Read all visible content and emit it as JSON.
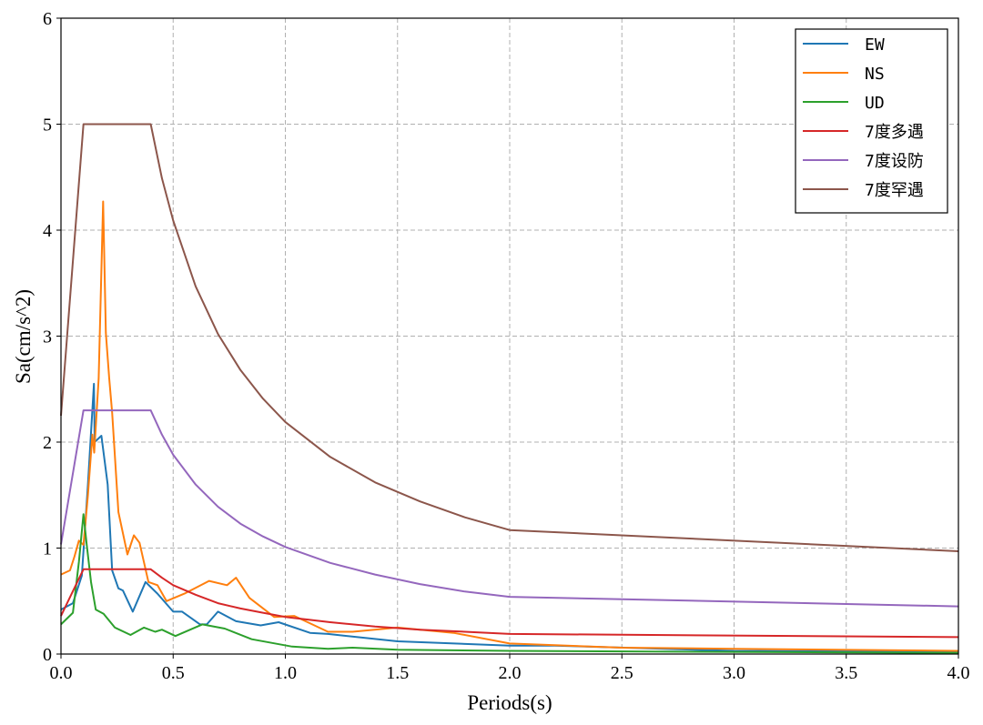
{
  "chart_data": {
    "type": "line",
    "xlabel": "Periods(s)",
    "ylabel": "Sa(cm/s^2)",
    "xlim": [
      0,
      4.0
    ],
    "ylim": [
      0,
      6
    ],
    "xticks": [
      "0.0",
      "0.5",
      "1.0",
      "1.5",
      "2.0",
      "2.5",
      "3.0",
      "3.5",
      "4.0"
    ],
    "yticks": [
      "0",
      "1",
      "2",
      "3",
      "4",
      "5",
      "6"
    ],
    "grid": true,
    "legend_position": "top-right",
    "series": [
      {
        "name": "EW",
        "color": "#1f77b4",
        "x": [
          0,
          0.053,
          0.093,
          0.12,
          0.147,
          0.15,
          0.18,
          0.208,
          0.228,
          0.256,
          0.276,
          0.32,
          0.377,
          0.43,
          0.5,
          0.54,
          0.62,
          0.65,
          0.7,
          0.78,
          0.89,
          0.97,
          1.11,
          1.19,
          1.5,
          2.0,
          2.2,
          3.0,
          4.0
        ],
        "y": [
          0.42,
          0.48,
          0.74,
          1.6,
          2.55,
          2.0,
          2.06,
          1.6,
          0.79,
          0.62,
          0.6,
          0.4,
          0.68,
          0.57,
          0.4,
          0.4,
          0.28,
          0.28,
          0.4,
          0.31,
          0.27,
          0.3,
          0.2,
          0.19,
          0.12,
          0.08,
          0.08,
          0.03,
          0.02
        ]
      },
      {
        "name": "NS",
        "color": "#ff7f0e",
        "x": [
          0,
          0.04,
          0.06,
          0.08,
          0.1,
          0.12,
          0.14,
          0.148,
          0.168,
          0.188,
          0.2,
          0.215,
          0.228,
          0.256,
          0.296,
          0.325,
          0.35,
          0.39,
          0.43,
          0.47,
          0.55,
          0.66,
          0.74,
          0.78,
          0.84,
          0.95,
          1.04,
          1.19,
          1.3,
          1.5,
          1.75,
          2.0,
          2.5,
          3.0,
          4.0
        ],
        "y": [
          0.75,
          0.79,
          0.92,
          1.07,
          1.03,
          1.5,
          2.07,
          1.9,
          2.6,
          4.27,
          3.03,
          2.6,
          2.28,
          1.34,
          0.94,
          1.12,
          1.05,
          0.68,
          0.65,
          0.5,
          0.57,
          0.69,
          0.65,
          0.72,
          0.53,
          0.35,
          0.36,
          0.21,
          0.21,
          0.25,
          0.2,
          0.1,
          0.06,
          0.05,
          0.03
        ]
      },
      {
        "name": "UD",
        "color": "#2ca02c",
        "x": [
          0,
          0.053,
          0.08,
          0.1,
          0.115,
          0.134,
          0.155,
          0.19,
          0.24,
          0.31,
          0.37,
          0.42,
          0.45,
          0.51,
          0.63,
          0.73,
          0.85,
          1.03,
          1.19,
          1.3,
          1.5,
          2.0,
          4.0
        ],
        "y": [
          0.28,
          0.39,
          0.87,
          1.32,
          1.03,
          0.68,
          0.42,
          0.38,
          0.25,
          0.18,
          0.25,
          0.21,
          0.23,
          0.17,
          0.28,
          0.24,
          0.14,
          0.07,
          0.05,
          0.06,
          0.04,
          0.03,
          0.01
        ]
      },
      {
        "name": "7度多遇",
        "color": "#d62728",
        "x": [
          0,
          0.1,
          0.4,
          0.45,
          0.5,
          0.6,
          0.7,
          0.8,
          0.9,
          1.0,
          1.2,
          1.4,
          1.6,
          1.8,
          2.0,
          4.0
        ],
        "y": [
          0.36,
          0.8,
          0.8,
          0.72,
          0.65,
          0.56,
          0.48,
          0.43,
          0.39,
          0.35,
          0.3,
          0.26,
          0.23,
          0.21,
          0.19,
          0.16
        ]
      },
      {
        "name": "7度设防",
        "color": "#9467bd",
        "x": [
          0,
          0.1,
          0.4,
          0.45,
          0.5,
          0.6,
          0.7,
          0.8,
          0.9,
          1.0,
          1.2,
          1.4,
          1.6,
          1.8,
          2.0,
          4.0
        ],
        "y": [
          1.035,
          2.3,
          2.3,
          2.07,
          1.88,
          1.6,
          1.39,
          1.23,
          1.11,
          1.01,
          0.86,
          0.75,
          0.66,
          0.59,
          0.54,
          0.45
        ]
      },
      {
        "name": "7度罕遇",
        "color": "#8c564b",
        "x": [
          0,
          0.1,
          0.4,
          0.45,
          0.5,
          0.6,
          0.7,
          0.8,
          0.9,
          1.0,
          1.2,
          1.4,
          1.6,
          1.8,
          2.0,
          4.0
        ],
        "y": [
          2.25,
          5,
          5,
          4.49,
          4.09,
          3.47,
          3.02,
          2.68,
          2.41,
          2.19,
          1.86,
          1.62,
          1.44,
          1.29,
          1.17,
          0.97
        ]
      }
    ]
  }
}
